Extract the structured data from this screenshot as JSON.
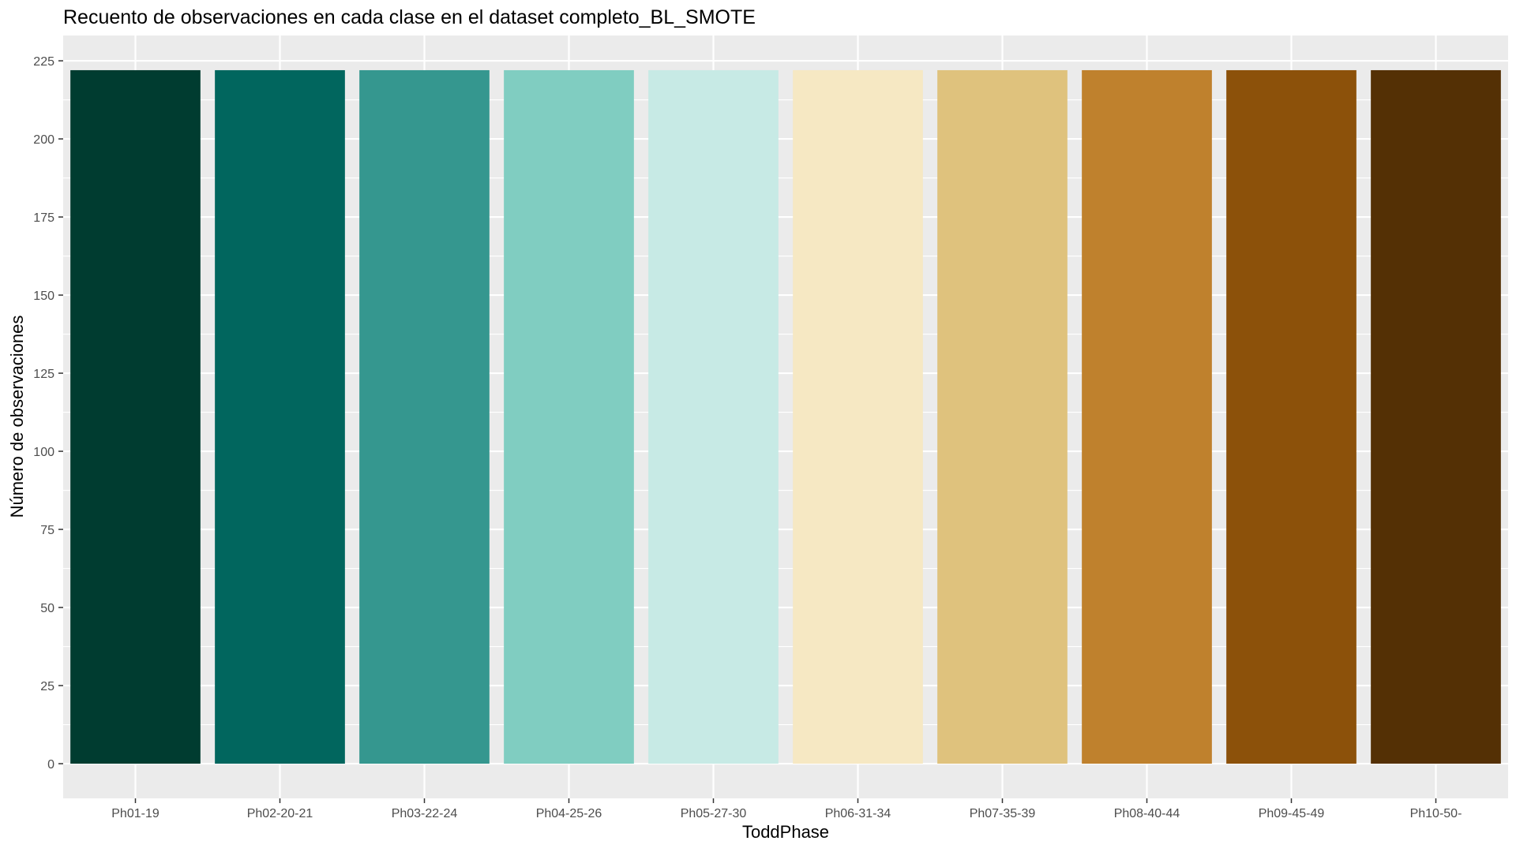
{
  "chart_data": {
    "type": "bar",
    "title": "Recuento de observaciones en cada clase en el dataset completo_BL_SMOTE",
    "xlabel": "ToddPhase",
    "ylabel": "Número de observaciones",
    "categories": [
      "Ph01-19",
      "Ph02-20-21",
      "Ph03-22-24",
      "Ph04-25-26",
      "Ph05-27-30",
      "Ph06-31-34",
      "Ph07-35-39",
      "Ph08-40-44",
      "Ph09-45-49",
      "Ph10-50-"
    ],
    "values": [
      222,
      222,
      222,
      222,
      222,
      222,
      222,
      222,
      222,
      222
    ],
    "colors": [
      "#003C30",
      "#01665E",
      "#35978F",
      "#80CDC1",
      "#C7EAE5",
      "#F6E8C3",
      "#DFC27D",
      "#BF812D",
      "#8C510A",
      "#543005"
    ],
    "yticks": [
      "0",
      "25",
      "50",
      "75",
      "100",
      "125",
      "150",
      "175",
      "200",
      "225"
    ],
    "ylim": [
      -11.1,
      233.1
    ],
    "grid": true,
    "legend": "none",
    "panel_background": "#EBEBEB",
    "grid_color": "#FFFFFF"
  }
}
